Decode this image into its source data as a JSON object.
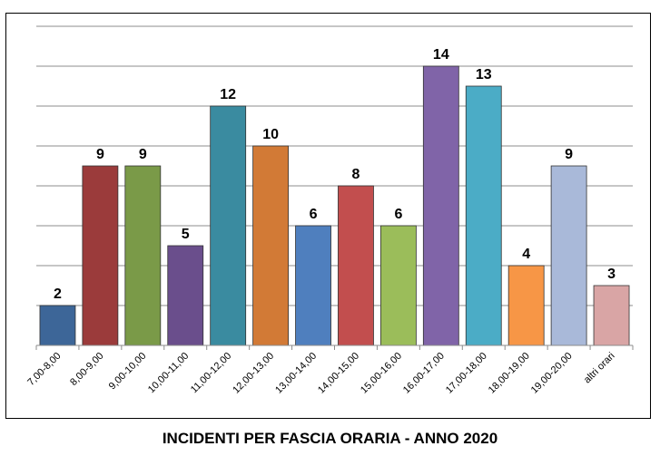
{
  "chart_data": {
    "type": "bar",
    "title": "INCIDENTI PER FASCIA ORARIA - ANNO 2020",
    "categories": [
      "7,00-8,00",
      "8,00-9,00",
      "9,00-10,00",
      "10,00-11,00",
      "11,00-12,00",
      "12,00-13,00",
      "13,00-14,00",
      "14,00-15,00",
      "15,00-16,00",
      "16,00-17,00",
      "17,00-18,00",
      "18,00-19,00",
      "19,00-20,00",
      "altri orari"
    ],
    "values": [
      2,
      9,
      9,
      5,
      12,
      10,
      6,
      8,
      6,
      14,
      13,
      4,
      9,
      3
    ],
    "colors": [
      "#3d6698",
      "#9b3b3b",
      "#7a9a48",
      "#6a4e8c",
      "#3a8ba0",
      "#d27a36",
      "#4f7fbe",
      "#c24e4e",
      "#9bbd5a",
      "#8064a8",
      "#4bacc6",
      "#f79646",
      "#a9b9d9",
      "#d9a5a5"
    ],
    "ylim": [
      0,
      16
    ],
    "grid": true,
    "legend": "none"
  }
}
